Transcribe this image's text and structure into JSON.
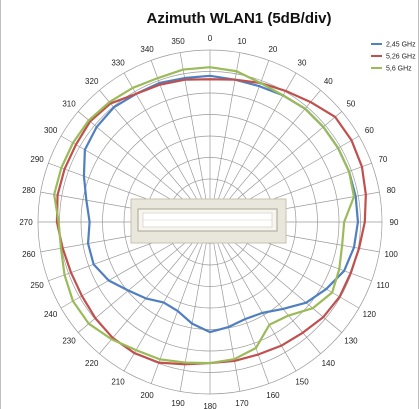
{
  "chart_data": {
    "type": "polar-line",
    "title": "Azimuth  WLAN1 (5dB/div)",
    "angle_ticks": [
      0,
      10,
      20,
      30,
      40,
      50,
      60,
      70,
      80,
      90,
      100,
      110,
      120,
      130,
      140,
      150,
      160,
      170,
      180,
      190,
      200,
      210,
      220,
      230,
      240,
      250,
      260,
      270,
      280,
      290,
      300,
      310,
      320,
      330,
      340,
      350
    ],
    "angle_labels": [
      "0",
      "10",
      "20",
      "30",
      "40",
      "50",
      "60",
      "70",
      "80",
      "90",
      "100",
      "110",
      "120",
      "130",
      "140",
      "150",
      "160",
      "170",
      "180",
      "190",
      "200",
      "210",
      "220",
      "230",
      "240",
      "250",
      "260",
      "270",
      "280",
      "290",
      "300",
      "310",
      "320",
      "330",
      "340",
      "350"
    ],
    "rings": 8,
    "legend_position": "top-right",
    "series": [
      {
        "name": "2,45 GHz",
        "color": "#4f7fc0",
        "angles": [
          0,
          10,
          20,
          30,
          40,
          50,
          60,
          70,
          80,
          90,
          100,
          110,
          120,
          130,
          140,
          150,
          160,
          170,
          180,
          190,
          200,
          210,
          220,
          230,
          240,
          250,
          260,
          270,
          280,
          290,
          300,
          310,
          320,
          330,
          340,
          350,
          360
        ],
        "values": [
          0.85,
          0.84,
          0.84,
          0.85,
          0.86,
          0.86,
          0.86,
          0.86,
          0.86,
          0.86,
          0.85,
          0.83,
          0.78,
          0.73,
          0.66,
          0.61,
          0.6,
          0.62,
          0.64,
          0.6,
          0.55,
          0.54,
          0.58,
          0.62,
          0.68,
          0.72,
          0.72,
          0.7,
          0.73,
          0.78,
          0.84,
          0.86,
          0.87,
          0.86,
          0.86,
          0.85,
          0.85
        ]
      },
      {
        "name": "5,26 GHz",
        "color": "#c0504d",
        "angles": [
          0,
          10,
          20,
          30,
          40,
          50,
          60,
          70,
          80,
          90,
          100,
          110,
          120,
          130,
          140,
          150,
          160,
          170,
          180,
          190,
          200,
          210,
          220,
          230,
          240,
          250,
          260,
          270,
          280,
          290,
          300,
          310,
          320,
          330,
          340,
          350,
          360
        ],
        "values": [
          0.83,
          0.84,
          0.86,
          0.88,
          0.91,
          0.95,
          0.95,
          0.94,
          0.92,
          0.9,
          0.88,
          0.87,
          0.87,
          0.86,
          0.84,
          0.83,
          0.82,
          0.82,
          0.82,
          0.84,
          0.87,
          0.88,
          0.88,
          0.87,
          0.86,
          0.86,
          0.87,
          0.89,
          0.9,
          0.9,
          0.9,
          0.91,
          0.9,
          0.86,
          0.85,
          0.84,
          0.83
        ]
      },
      {
        "name": "5,6 GHz",
        "color": "#9bbb59",
        "angles": [
          0,
          10,
          20,
          30,
          40,
          50,
          60,
          70,
          80,
          90,
          100,
          110,
          120,
          130,
          140,
          150,
          160,
          170,
          180,
          190,
          200,
          210,
          220,
          230,
          240,
          250,
          260,
          270,
          280,
          290,
          300,
          310,
          320,
          330,
          340,
          350,
          360
        ],
        "values": [
          0.9,
          0.89,
          0.86,
          0.85,
          0.86,
          0.86,
          0.86,
          0.86,
          0.85,
          0.78,
          0.78,
          0.8,
          0.82,
          0.78,
          0.71,
          0.69,
          0.78,
          0.81,
          0.82,
          0.83,
          0.85,
          0.86,
          0.89,
          0.92,
          0.92,
          0.9,
          0.88,
          0.88,
          0.92,
          0.92,
          0.92,
          0.92,
          0.91,
          0.9,
          0.89,
          0.9,
          0.9
        ]
      }
    ]
  }
}
